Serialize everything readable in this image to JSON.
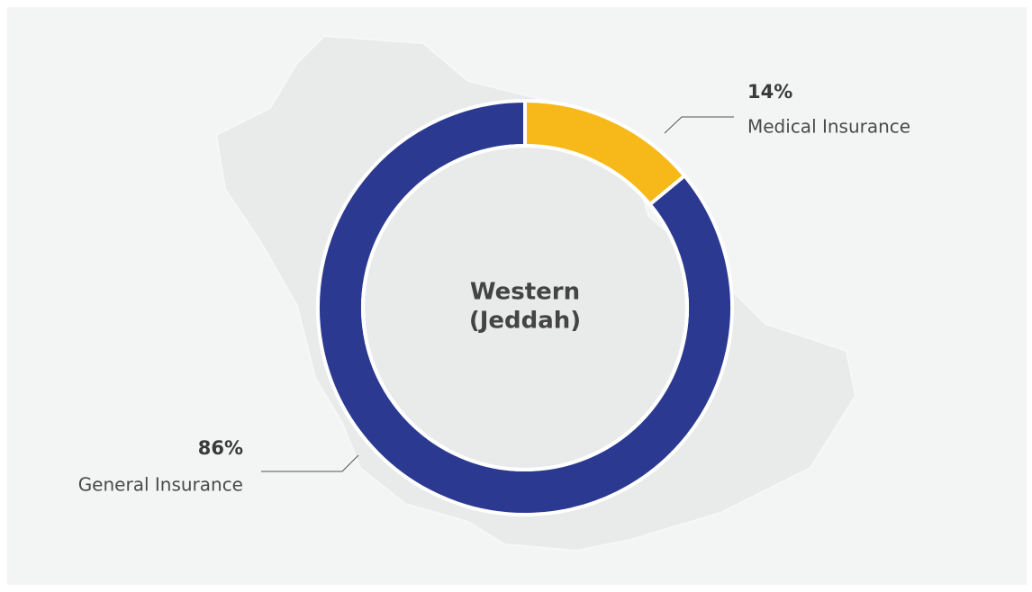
{
  "chart_data": {
    "type": "donut",
    "center_label": [
      "Western",
      "(Jeddah)"
    ],
    "categories": [
      "Medical Insurance",
      "General Insurance"
    ],
    "values": [
      14,
      86
    ],
    "value_labels": [
      "14%",
      "86%"
    ],
    "colors": [
      "#f6b919",
      "#2b3990"
    ]
  }
}
